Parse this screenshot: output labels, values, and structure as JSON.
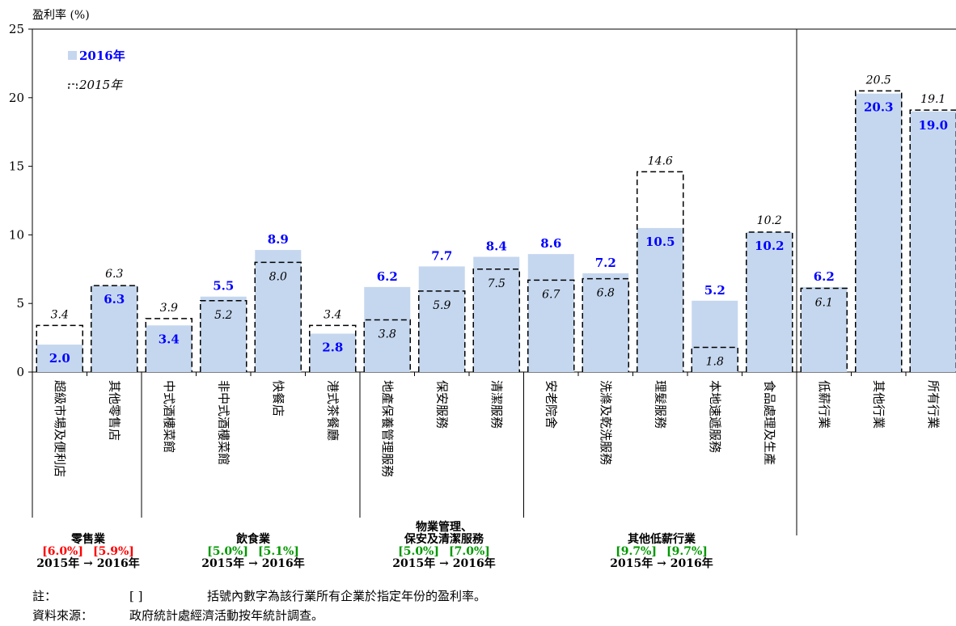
{
  "chart_data": {
    "type": "bar",
    "ylabel": "盈利率 (%)",
    "ylim": [
      0,
      25
    ],
    "yticks": [
      0,
      5,
      10,
      15,
      20,
      25
    ],
    "categories": [
      "超級市場及便利店",
      "其他零售店",
      "中式酒樓菜館",
      "非中式酒樓菜館",
      "快餐店",
      "港式茶餐廳",
      "地產保養管理服務",
      "保安服務",
      "清潔服務",
      "安老院舍",
      "洗滌及乾洗服務",
      "理髮服務",
      "本地速遞服務",
      "食品處理及生產",
      "低薪行業",
      "其他行業",
      "所有行業"
    ],
    "series": [
      {
        "name": "2016年",
        "values": [
          2.0,
          6.3,
          3.4,
          5.5,
          8.9,
          2.8,
          6.2,
          7.7,
          8.4,
          8.6,
          7.2,
          10.5,
          5.2,
          10.2,
          6.2,
          20.3,
          19.0
        ],
        "color": "#c5d7ef",
        "label_color": "#0000ff"
      },
      {
        "name": "2015年",
        "values": [
          3.4,
          6.3,
          3.9,
          5.2,
          8.0,
          3.4,
          3.8,
          5.9,
          7.5,
          6.7,
          6.8,
          14.6,
          1.8,
          10.2,
          6.1,
          20.5,
          19.1
        ],
        "style": "dashed-outline"
      }
    ],
    "data_labels_2016": [
      "2.0",
      "6.3",
      "3.4",
      "5.5",
      "8.9",
      "2.8",
      "6.2",
      "7.7",
      "8.4",
      "8.6",
      "7.2",
      "10.5",
      "5.2",
      "10.2",
      "6.2",
      "20.3",
      "19.0"
    ],
    "data_labels_2015": [
      "3.4",
      "6.3",
      "3.9",
      "5.2",
      "8.0",
      "3.4",
      "3.8",
      "5.9",
      "7.5",
      "6.7",
      "6.8",
      "14.6",
      "1.8",
      "10.2",
      "6.1",
      "20.5",
      "19.1"
    ],
    "legend": {
      "placement": "top-left",
      "items": [
        "2016年",
        "2015年"
      ]
    },
    "groups": [
      {
        "name": "零售業",
        "rate_2015": "[6.0%]",
        "rate_2016": "[5.9%]",
        "years": "2015年 → 2016年",
        "rate_color": "#ff0000",
        "start": 0,
        "end": 1
      },
      {
        "name": "飲食業",
        "rate_2015": "[5.0%]",
        "rate_2016": "[5.1%]",
        "years": "2015年 → 2016年",
        "rate_color": "#009900",
        "start": 2,
        "end": 5
      },
      {
        "name": "物業管理、\n保安及清潔服務",
        "rate_2015": "[5.0%]",
        "rate_2016": "[7.0%]",
        "years": "2015年 → 2016年",
        "rate_color": "#009900",
        "start": 6,
        "end": 8
      },
      {
        "name": "其他低薪行業",
        "rate_2015": "[9.7%]",
        "rate_2016": "[9.7%]",
        "years": "2015年 → 2016年",
        "rate_color": "#009900",
        "start": 9,
        "end": 13
      }
    ]
  },
  "footnotes": {
    "note_label": "註：",
    "note_bracket": "[    ]",
    "note_text": "括號內數字為該行業所有企業於指定年份的盈利率。",
    "source_label": "資料來源：",
    "source_text": "政府統計處經濟活動按年統計調查。"
  }
}
